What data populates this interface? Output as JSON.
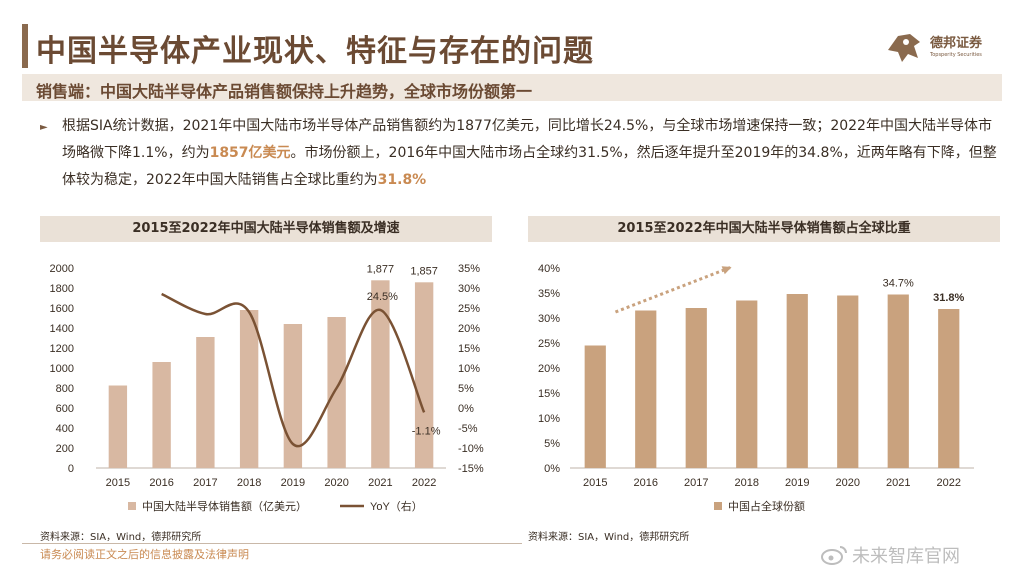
{
  "header": {
    "title": "中国半导体产业现状、特征与存在的问题",
    "logo_name": "德邦证券",
    "logo_tagline": "Topsperity Securities"
  },
  "subtitle": "销售端：中国大陆半导体产品销售额保持上升趋势，全球市场份额第一",
  "body": {
    "bullet": "►",
    "p1": "根据SIA统计数据，2021年中国大陆市场半导体产品销售额约为1877亿美元，同比增长24.5%，与全球市场增速保持一致；2022年中国大陆半导体市场略微下降1.1%，约为",
    "hl1": "1857亿美元",
    "p2": "。市场份额上，2016年中国大陆市场占全球约31.5%，然后逐年提升至2019年的34.8%，近两年略有下降，但整体较为稳定，2022年中国大陆销售占全球比重约为",
    "hl2": "31.8%"
  },
  "left_chart_title": "2015至2022年中国大陆半导体销售额及增速",
  "right_chart_title": "2015至2022年中国大陆半导体销售额占全球比重",
  "left_source": "资料来源：SIA，Wind，德邦研究所",
  "right_source": "资料来源：SIA，Wind，德邦研究所",
  "disclaimer": "请务必阅读正文之后的信息披露及法律声明",
  "watermark": "未来智库官网",
  "colors": {
    "bar": "#d8b8a2",
    "bar_right": "#c9a27e",
    "line": "#7a5234",
    "accent": "#c98a52",
    "red_label": "#b8333b"
  },
  "chart_data": [
    {
      "type": "bar",
      "title": "2015至2022年中国大陆半导体销售额及增速",
      "categories": [
        "2015",
        "2016",
        "2017",
        "2018",
        "2019",
        "2020",
        "2021",
        "2022"
      ],
      "series": [
        {
          "name": "中国大陆半导体销售额（亿美元）",
          "type": "bar",
          "axis": "left",
          "values": [
            825,
            1060,
            1310,
            1580,
            1440,
            1510,
            1877,
            1857
          ]
        },
        {
          "name": "YoY（右）",
          "type": "line",
          "axis": "right",
          "values": [
            null,
            28.5,
            23.5,
            24.0,
            -9.0,
            5.0,
            24.5,
            -1.1
          ]
        }
      ],
      "y_left": {
        "ticks": [
          "0",
          "200",
          "400",
          "600",
          "800",
          "1000",
          "1200",
          "1400",
          "1600",
          "1800",
          "2000"
        ],
        "ylim": [
          0,
          2000
        ]
      },
      "y_right": {
        "ticks": [
          "-15%",
          "-10%",
          "-5%",
          "0%",
          "5%",
          "10%",
          "15%",
          "20%",
          "25%",
          "30%",
          "35%"
        ],
        "ylim": [
          -15,
          35
        ]
      },
      "data_labels": [
        {
          "series": 0,
          "index": 6,
          "text": "1,877"
        },
        {
          "series": 0,
          "index": 7,
          "text": "1,857"
        },
        {
          "series": 1,
          "index": 6,
          "text": "24.5%"
        },
        {
          "series": 1,
          "index": 7,
          "text": "-1.1%"
        }
      ],
      "legend": "bottom"
    },
    {
      "type": "bar",
      "title": "2015至2022年中国大陆半导体销售额占全球比重",
      "categories": [
        "2015",
        "2016",
        "2017",
        "2018",
        "2019",
        "2020",
        "2021",
        "2022"
      ],
      "series": [
        {
          "name": "中国占全球份额",
          "values": [
            24.5,
            31.5,
            32.0,
            33.5,
            34.8,
            34.5,
            34.7,
            31.8
          ]
        }
      ],
      "y": {
        "ticks": [
          "0%",
          "5%",
          "10%",
          "15%",
          "20%",
          "25%",
          "30%",
          "35%",
          "40%"
        ],
        "ylim": [
          0,
          40
        ]
      },
      "data_labels": [
        {
          "index": 6,
          "text": "34.7%"
        },
        {
          "index": 7,
          "text": "31.8%",
          "highlight": true
        }
      ],
      "annotation": "upward-trend-arrow",
      "legend": "bottom"
    }
  ]
}
